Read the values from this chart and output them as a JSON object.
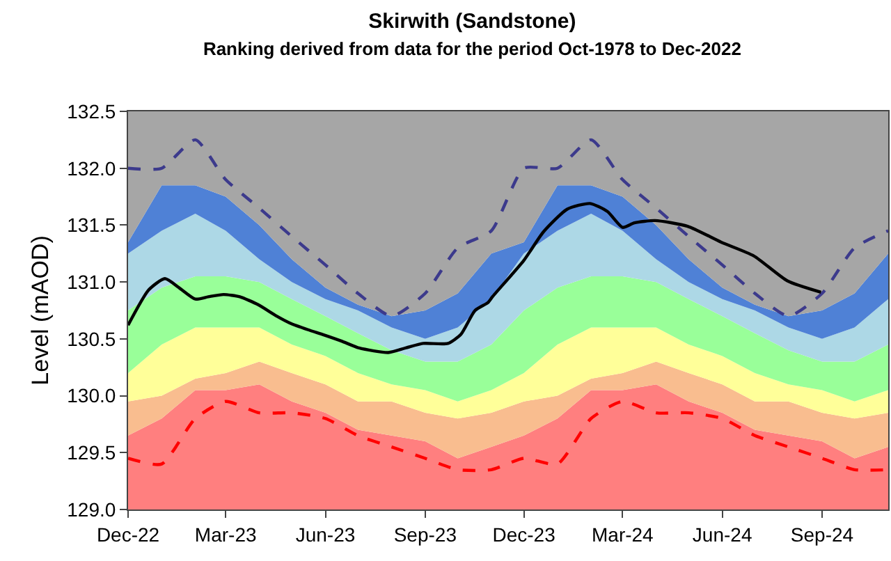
{
  "chart_data": {
    "type": "area",
    "title": "Skirwith (Sandstone)",
    "subtitle": "Ranking derived from data for the period Oct-1978 to Dec-2022",
    "ylabel": "Level (mAOD)",
    "x": [
      "2022-12",
      "2023-01",
      "2023-02",
      "2023-03",
      "2023-04",
      "2023-05",
      "2023-06",
      "2023-07",
      "2023-08",
      "2023-09",
      "2023-10",
      "2023-11",
      "2023-12",
      "2024-01",
      "2024-02",
      "2024-03",
      "2024-04",
      "2024-05",
      "2024-06",
      "2024-07",
      "2024-08",
      "2024-09",
      "2024-10",
      "2024-11"
    ],
    "stacked": false,
    "series": [
      {
        "color": "#ff7f7f",
        "values": [
          129.65,
          129.8,
          130.05,
          130.05,
          130.1,
          129.95,
          129.85,
          129.7,
          129.65,
          129.6,
          129.45,
          129.55,
          129.65,
          129.8,
          130.05,
          130.05,
          130.1,
          129.95,
          129.85,
          129.7,
          129.65,
          129.6,
          129.45,
          129.55
        ]
      },
      {
        "color": "#f9bd8f",
        "values": [
          129.95,
          130.0,
          130.15,
          130.2,
          130.3,
          130.2,
          130.1,
          129.95,
          129.95,
          129.85,
          129.8,
          129.85,
          129.95,
          130.0,
          130.15,
          130.2,
          130.3,
          130.2,
          130.1,
          129.95,
          129.95,
          129.85,
          129.8,
          129.85
        ]
      },
      {
        "color": "#ffff99",
        "values": [
          130.2,
          130.45,
          130.6,
          130.6,
          130.6,
          130.45,
          130.35,
          130.2,
          130.1,
          130.05,
          129.95,
          130.05,
          130.2,
          130.45,
          130.6,
          130.6,
          130.6,
          130.45,
          130.35,
          130.2,
          130.1,
          130.05,
          129.95,
          130.05
        ]
      },
      {
        "color": "#99ff99",
        "values": [
          130.75,
          130.95,
          131.05,
          131.05,
          131.0,
          130.85,
          130.7,
          130.55,
          130.4,
          130.3,
          130.3,
          130.45,
          130.75,
          130.95,
          131.05,
          131.05,
          131.0,
          130.85,
          130.7,
          130.55,
          130.4,
          130.3,
          130.3,
          130.45
        ]
      },
      {
        "color": "#add8e6",
        "values": [
          131.25,
          131.45,
          131.6,
          131.45,
          131.2,
          131.0,
          130.85,
          130.75,
          130.6,
          130.5,
          130.6,
          130.85,
          131.25,
          131.45,
          131.6,
          131.45,
          131.2,
          131.0,
          130.85,
          130.75,
          130.6,
          130.5,
          130.6,
          130.85
        ]
      },
      {
        "color": "#4f81d6",
        "values": [
          131.35,
          131.85,
          131.85,
          131.75,
          131.5,
          131.2,
          130.95,
          130.8,
          130.7,
          130.75,
          130.9,
          131.25,
          131.35,
          131.85,
          131.85,
          131.75,
          131.5,
          131.2,
          130.95,
          130.8,
          130.7,
          130.75,
          130.9,
          131.25
        ]
      },
      {
        "color": "#a6a6a6",
        "values": [
          132.5,
          132.5,
          132.5,
          132.5,
          132.5,
          132.5,
          132.5,
          132.5,
          132.5,
          132.5,
          132.5,
          132.5,
          132.5,
          132.5,
          132.5,
          132.5,
          132.5,
          132.5,
          132.5,
          132.5,
          132.5,
          132.5,
          132.5,
          132.5
        ]
      },
      {
        "type": "line",
        "color": "#3c3a8c",
        "line_style": "dashed",
        "values": [
          132.0,
          132.0,
          132.25,
          131.9,
          131.65,
          131.4,
          131.15,
          130.9,
          130.7,
          130.9,
          131.3,
          131.45,
          132.0,
          132.0,
          132.25,
          131.9,
          131.65,
          131.4,
          131.15,
          130.9,
          130.7,
          130.9,
          131.3,
          131.45
        ]
      },
      {
        "type": "line",
        "color": "#ff0000",
        "line_style": "dashed",
        "values": [
          129.45,
          129.4,
          129.8,
          129.95,
          129.85,
          129.85,
          129.8,
          129.65,
          129.55,
          129.45,
          129.35,
          129.35,
          129.45,
          129.4,
          129.8,
          129.95,
          129.85,
          129.85,
          129.8,
          129.65,
          129.55,
          129.45,
          129.35,
          129.35
        ]
      },
      {
        "type": "line",
        "color": "#000000",
        "line_style": "solid",
        "x": [
          "2022-12-01",
          "2022-12-20",
          "2023-01-04",
          "2023-01-17",
          "2023-02-01",
          "2023-02-13",
          "2023-02-27",
          "2023-03-14",
          "2023-03-31",
          "2023-04-17",
          "2023-04-29",
          "2023-05-16",
          "2023-05-29",
          "2023-06-16",
          "2023-07-02",
          "2023-07-29",
          "2023-08-14",
          "2023-08-30",
          "2023-09-22",
          "2023-10-04",
          "2023-10-17",
          "2023-10-29",
          "2023-11-02",
          "2023-12-01",
          "2023-12-19",
          "2024-01-10",
          "2024-01-31",
          "2024-02-16",
          "2024-03-01",
          "2024-03-12",
          "2024-03-31",
          "2024-04-30",
          "2024-05-31",
          "2024-06-30",
          "2024-07-31",
          "2024-08-31"
        ],
        "values": [
          130.62,
          130.93,
          131.03,
          130.95,
          130.85,
          130.87,
          130.89,
          130.87,
          130.8,
          130.7,
          130.64,
          130.58,
          130.54,
          130.48,
          130.42,
          130.38,
          130.42,
          130.46,
          130.46,
          130.54,
          130.75,
          130.82,
          130.87,
          131.19,
          131.44,
          131.64,
          131.69,
          131.62,
          131.48,
          131.52,
          131.54,
          131.49,
          131.35,
          131.23,
          131.01,
          130.91
        ]
      }
    ],
    "xlim": [
      "2022-12",
      "2024-11"
    ],
    "xticks": [
      {
        "value": "2022-12",
        "label": "Dec-22"
      },
      {
        "value": "2023-03",
        "label": "Mar-23"
      },
      {
        "value": "2023-06",
        "label": "Jun-23"
      },
      {
        "value": "2023-09",
        "label": "Sep-23"
      },
      {
        "value": "2023-12",
        "label": "Dec-23"
      },
      {
        "value": "2024-03",
        "label": "Mar-24"
      },
      {
        "value": "2024-06",
        "label": "Jun-24"
      },
      {
        "value": "2024-09",
        "label": "Sep-24"
      }
    ],
    "ylim": [
      129.0,
      132.5
    ],
    "yticks": [
      {
        "value": 129,
        "label": "129.0"
      },
      {
        "value": 129.5,
        "label": "129.5"
      },
      {
        "value": 130,
        "label": "130.0"
      },
      {
        "value": 130.5,
        "label": "130.5"
      },
      {
        "value": 131,
        "label": "131.0"
      },
      {
        "value": 131.5,
        "label": "131.5"
      },
      {
        "value": 132,
        "label": "132.0"
      },
      {
        "value": 132.5,
        "label": "132.5"
      }
    ]
  }
}
